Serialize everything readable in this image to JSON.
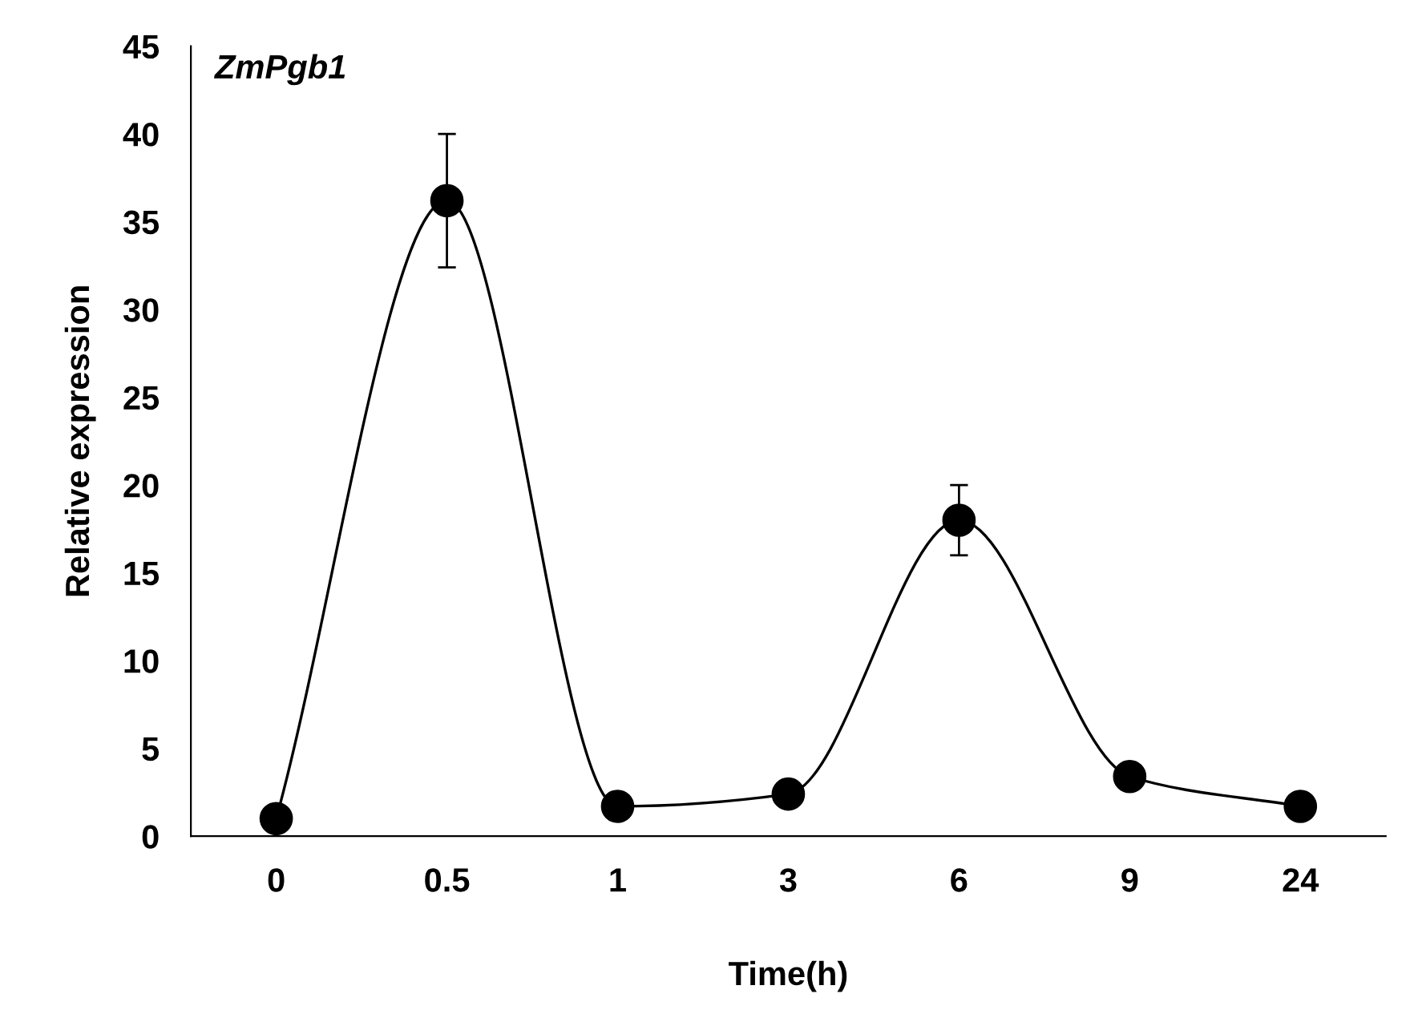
{
  "chart_data": {
    "type": "line",
    "title": "ZmPgb1",
    "xlabel": "Time(h)",
    "ylabel": "Relative expression",
    "categories": [
      "0",
      "0.5",
      "1",
      "3",
      "6",
      "9",
      "24"
    ],
    "series": [
      {
        "color": "#000000",
        "values": [
          1.0,
          36.2,
          1.7,
          2.4,
          18.0,
          3.4,
          1.7
        ],
        "errors": [
          null,
          3.8,
          null,
          null,
          2.0,
          null,
          null
        ]
      }
    ],
    "ylim": [
      0,
      45
    ],
    "yticks": [
      0,
      5,
      10,
      15,
      20,
      25,
      30,
      35,
      40,
      45
    ],
    "grid": false,
    "marker": "circle",
    "line_style": "solid"
  }
}
